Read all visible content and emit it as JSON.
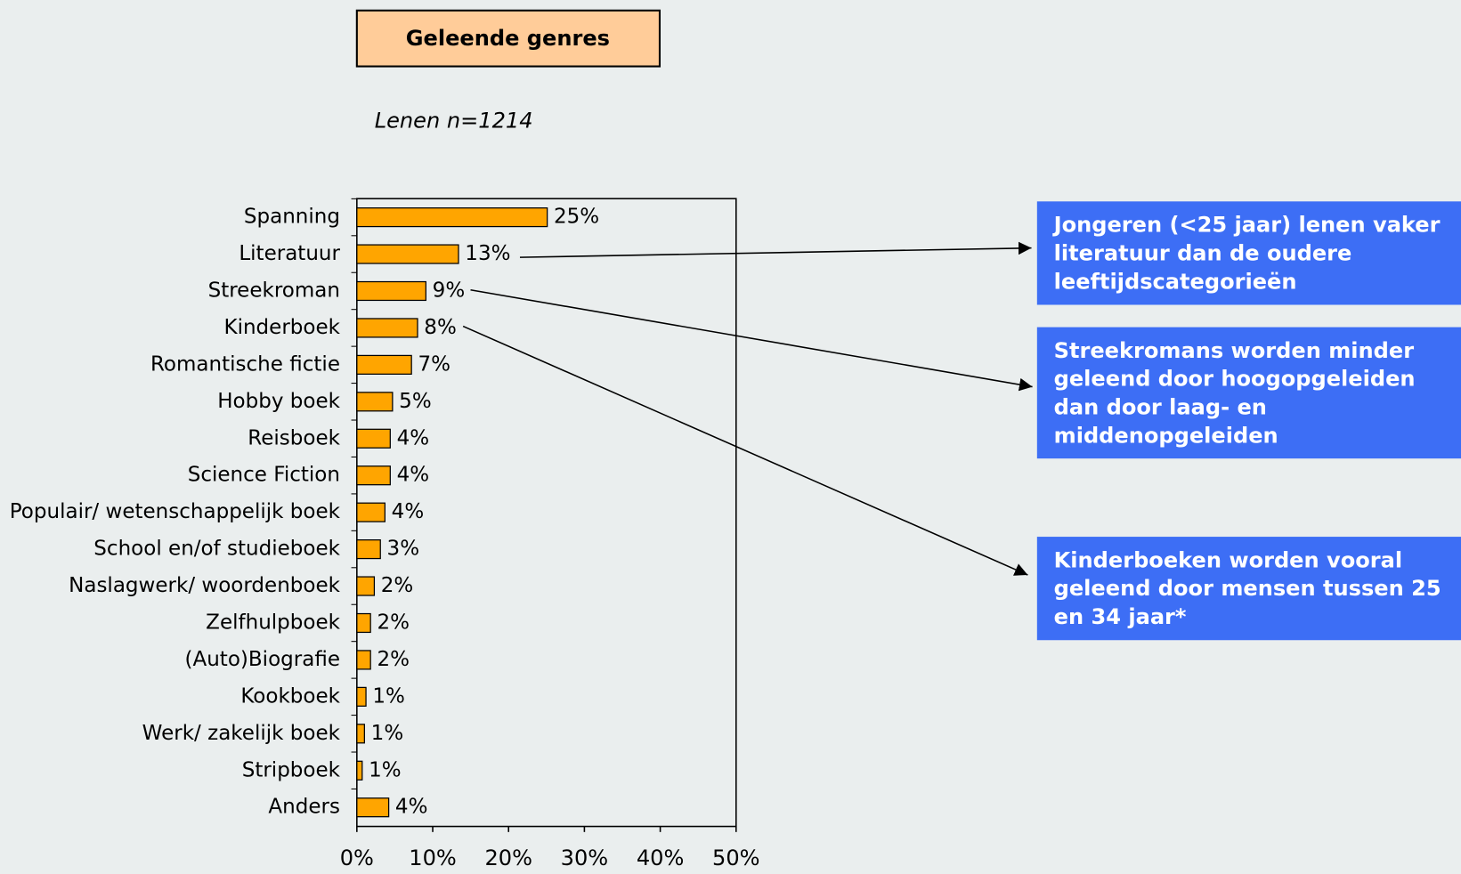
{
  "chart_data": {
    "type": "bar",
    "orientation": "horizontal",
    "title": "Geleende genres",
    "subtitle": "Lenen n=1214",
    "categories": [
      "Spanning",
      "Literatuur",
      "Streekroman",
      "Kinderboek",
      "Romantische fictie",
      "Hobby boek",
      "Reisboek",
      "Science Fiction",
      "Populair/ wetenschappelijk boek",
      "School en/of studieboek",
      "Naslagwerk/ woordenboek",
      "Zelfhulpboek",
      "(Auto)Biografie",
      "Kookboek",
      "Werk/ zakelijk boek",
      "Stripboek",
      "Anders"
    ],
    "values": [
      25.1,
      13.4,
      9.1,
      8.0,
      7.2,
      4.7,
      4.4,
      4.4,
      3.7,
      3.1,
      2.3,
      1.8,
      1.8,
      1.2,
      1.0,
      0.7,
      4.2
    ],
    "value_labels": [
      "25%",
      "13%",
      "9%",
      "8%",
      "7%",
      "5%",
      "4%",
      "4%",
      "4%",
      "3%",
      "2%",
      "2%",
      "2%",
      "1%",
      "1%",
      "1%",
      "4%"
    ],
    "color": "#ffa500",
    "xlim": [
      0,
      50
    ],
    "xticks": [
      {
        "value": 0,
        "label": "0%"
      },
      {
        "value": 10,
        "label": "10%"
      },
      {
        "value": 20,
        "label": "20%"
      },
      {
        "value": 30,
        "label": "30%"
      },
      {
        "value": 40,
        "label": "40%"
      },
      {
        "value": 50,
        "label": "50%"
      }
    ],
    "annotations": [
      [
        "Jongeren (<25 jaar) lenen vaker",
        "literatuur dan de oudere",
        "leeftijdscategorieën"
      ],
      [
        "Streekromans worden minder",
        "geleend door hoogopgeleiden",
        "dan door laag- en",
        "middenopgeleiden"
      ],
      [
        "Kinderboeken worden vooral",
        "geleend door mensen tussen 25",
        "en 34 jaar*"
      ]
    ]
  }
}
